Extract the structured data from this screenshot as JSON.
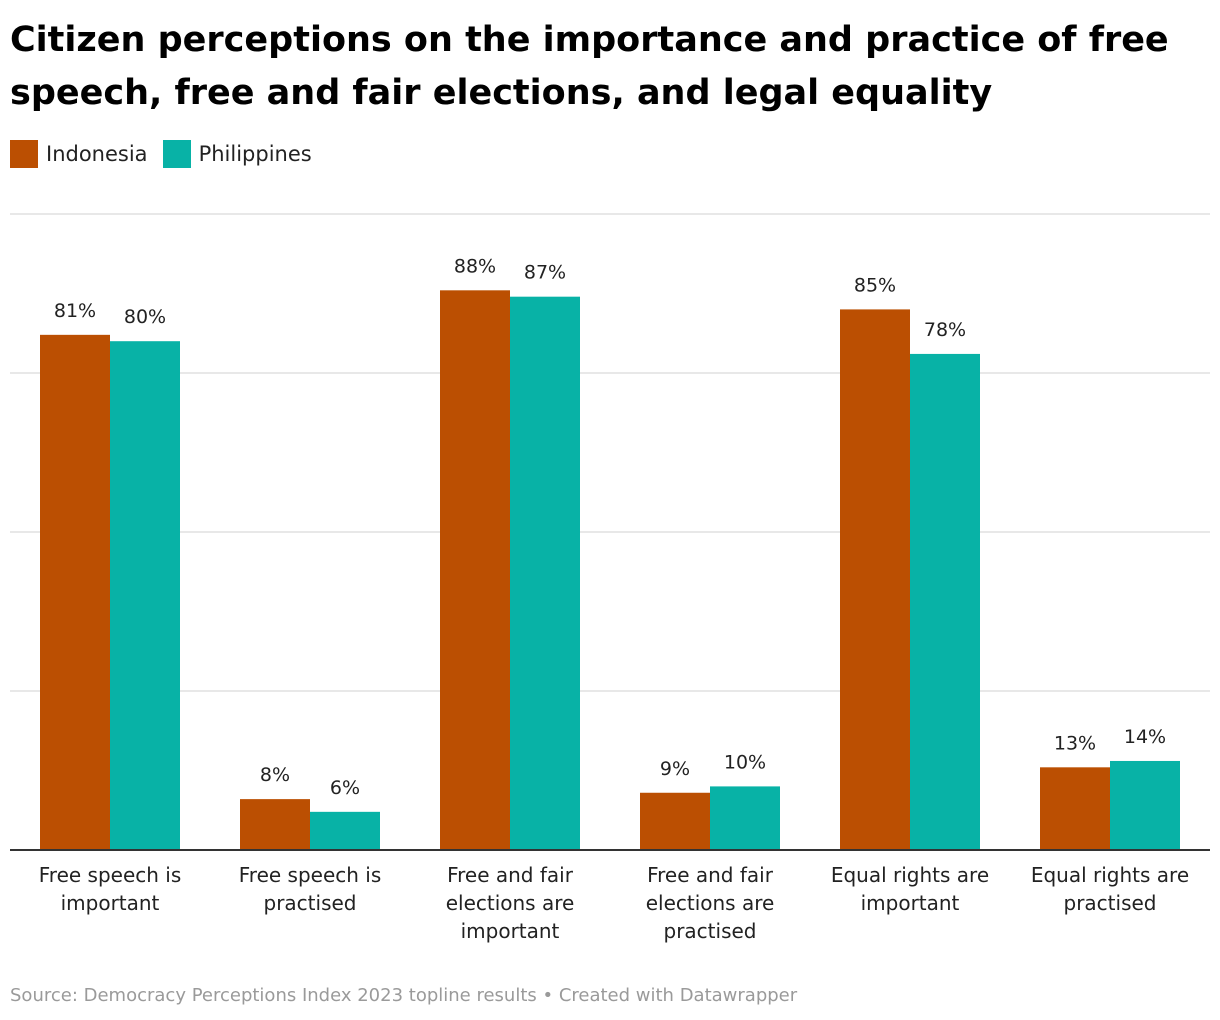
{
  "chart_data": {
    "type": "bar",
    "title": "Citizen perceptions on the importance and practice of free speech, free and fair elections, and legal equality",
    "categories": [
      "Free speech is important",
      "Free speech is practised",
      "Free and fair elections are important",
      "Free and fair elections are practised",
      "Equal rights are important",
      "Equal rights are practised"
    ],
    "category_lines": [
      [
        "Free speech is",
        "important"
      ],
      [
        "Free speech is",
        "practised"
      ],
      [
        "Free and fair",
        "elections are",
        "important"
      ],
      [
        "Free and fair",
        "elections are",
        "practised"
      ],
      [
        "Equal rights are",
        "important"
      ],
      [
        "Equal rights are",
        "practised"
      ]
    ],
    "series": [
      {
        "name": "Indonesia",
        "color": "#bb4f02",
        "values": [
          81,
          8,
          88,
          9,
          85,
          13
        ]
      },
      {
        "name": "Philippines",
        "color": "#08b2a6",
        "values": [
          80,
          6,
          87,
          10,
          78,
          14
        ]
      }
    ],
    "value_suffix": "%",
    "ylim": [
      0,
      100
    ],
    "grid": true,
    "legend_position": "top-left",
    "xlabel": "",
    "ylabel": ""
  },
  "source": "Source: Democracy Perceptions Index 2023 topline results • Created with Datawrapper"
}
